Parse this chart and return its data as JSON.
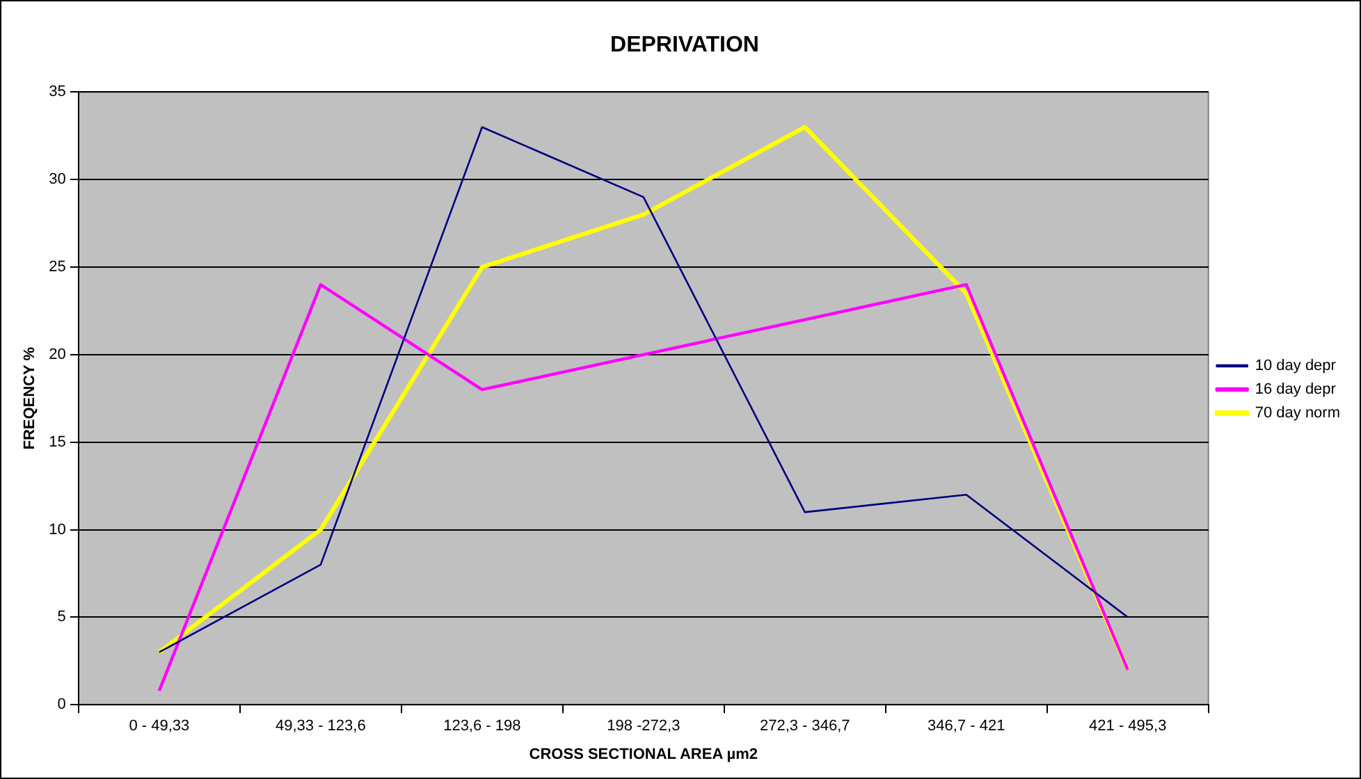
{
  "chart_data": {
    "type": "line",
    "title": "DEPRIVATION",
    "xlabel": "CROSS SECTIONAL AREA µm2",
    "ylabel": "FREQENCY %",
    "categories": [
      "0 - 49,33",
      "49,33 - 123,6",
      "123,6 - 198",
      "198 -272,3",
      "272,3 - 346,7",
      "346,7 - 421",
      "421 - 495,3"
    ],
    "series": [
      {
        "name": "10 day depr",
        "color": "#000080",
        "values": [
          3,
          8,
          33,
          29,
          11,
          12,
          5
        ]
      },
      {
        "name": "16 day depr",
        "color": "#ff00ff",
        "values": [
          0.8,
          24,
          18,
          20,
          22,
          24,
          2
        ]
      },
      {
        "name": "70 day norm",
        "color": "#ffff00",
        "values": [
          3,
          10,
          25,
          28,
          33,
          23.5,
          2
        ]
      }
    ],
    "ylim": [
      0,
      35
    ],
    "yticks": [
      0,
      5,
      10,
      15,
      20,
      25,
      30,
      35
    ],
    "grid": "y",
    "legend": "right",
    "marker": "none",
    "line_style": "solid"
  }
}
